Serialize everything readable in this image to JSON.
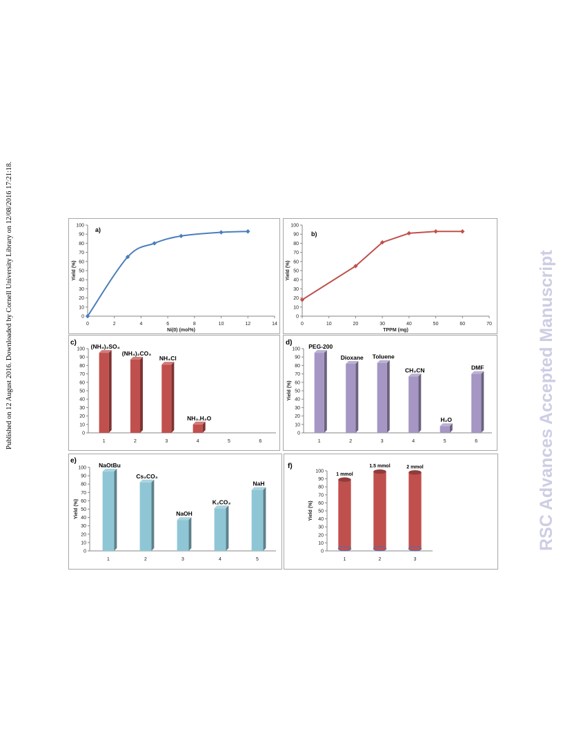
{
  "page": {
    "side_note": "Published on 12 August 2016. Downloaded by Cornell University Library on 12/08/2016 17:21:18.",
    "watermark": "RSC Advances Accepted Manuscript"
  },
  "chart_data": [
    {
      "id": "a",
      "type": "line",
      "panel_label": "a)",
      "xlabel": "Ni(0) (mol%)",
      "ylabel": "Yield (%)",
      "xlim": [
        0,
        14
      ],
      "ylim": [
        0,
        100
      ],
      "xticks": [
        "0",
        "2",
        "4",
        "6",
        "8",
        "10",
        "12",
        "14"
      ],
      "yticks": [
        "0",
        "10",
        "20",
        "30",
        "40",
        "50",
        "60",
        "70",
        "80",
        "90",
        "100"
      ],
      "x": [
        0,
        3,
        5,
        7,
        10,
        12
      ],
      "values": [
        0,
        65,
        80,
        88,
        92,
        93
      ],
      "color": "#4a7ebb",
      "smooth": true,
      "grid": false
    },
    {
      "id": "b",
      "type": "line",
      "panel_label": "b)",
      "xlabel": "TPPM (mg)",
      "ylabel": "Yield (%)",
      "xlim": [
        0,
        70
      ],
      "ylim": [
        0,
        100
      ],
      "xticks": [
        "0",
        "10",
        "20",
        "30",
        "40",
        "50",
        "60",
        "70"
      ],
      "yticks": [
        "0",
        "10",
        "20",
        "30",
        "40",
        "50",
        "60",
        "70",
        "80",
        "90",
        "100"
      ],
      "x": [
        0,
        20,
        30,
        40,
        50,
        60
      ],
      "values": [
        18,
        55,
        81,
        91,
        93,
        93
      ],
      "color": "#c0504d",
      "smooth": false,
      "grid": false
    },
    {
      "id": "c",
      "type": "bar",
      "panel_label": "c)",
      "ylabel": "",
      "ylim": [
        0,
        100
      ],
      "yticks": [
        "0",
        "10",
        "20",
        "30",
        "40",
        "50",
        "60",
        "70",
        "80",
        "90",
        "100"
      ],
      "categories": [
        "1",
        "2",
        "3",
        "4",
        "5",
        "6"
      ],
      "values": [
        95,
        87,
        81,
        10,
        null,
        null
      ],
      "bar_labels": [
        "(NH₄)₂SO₄",
        "(NH₄)₂CO₃",
        "NH₄Cl",
        "NH₃.H₂O",
        "",
        ""
      ],
      "color": "#c0504d"
    },
    {
      "id": "d",
      "type": "bar",
      "panel_label": "d)",
      "ylabel": "Yield (%)",
      "ylim": [
        0,
        100
      ],
      "yticks": [
        "0",
        "10",
        "20",
        "30",
        "40",
        "50",
        "60",
        "70",
        "80",
        "90",
        "100"
      ],
      "categories": [
        "1",
        "2",
        "3",
        "4",
        "5",
        "6"
      ],
      "values": [
        95,
        82,
        83,
        67,
        8,
        70
      ],
      "bar_labels": [
        "PEG-200",
        "Dioxane",
        "Toluene",
        "CH₃CN",
        "H₂O",
        "DMF"
      ],
      "color": "#a596c4"
    },
    {
      "id": "e",
      "type": "bar",
      "panel_label": "e)",
      "ylabel": "Yield (%)",
      "ylim": [
        0,
        100
      ],
      "yticks": [
        "0",
        "10",
        "20",
        "30",
        "40",
        "50",
        "60",
        "70",
        "80",
        "90",
        "100"
      ],
      "categories": [
        "1",
        "2",
        "3",
        "4",
        "5"
      ],
      "values": [
        95,
        82,
        37,
        51,
        73
      ],
      "bar_labels": [
        "NaOtBu",
        "Cs₂CO₃",
        "NaOH",
        "K₂CO₃",
        "NaH"
      ],
      "color": "#8fc6d6"
    },
    {
      "id": "f",
      "type": "bar",
      "panel_label": "f)",
      "ylabel": "Yield (%)",
      "ylim": [
        0,
        100
      ],
      "yticks": [
        "0",
        "10",
        "20",
        "30",
        "40",
        "50",
        "60",
        "70",
        "80",
        "90",
        "100"
      ],
      "categories": [
        "1",
        "2",
        "3"
      ],
      "values": [
        89,
        99,
        98
      ],
      "bar_labels": [
        "1 mmol",
        "1.5 mmol",
        "2 mmol"
      ],
      "color": "#c0504d",
      "shape": "cylinder"
    }
  ]
}
